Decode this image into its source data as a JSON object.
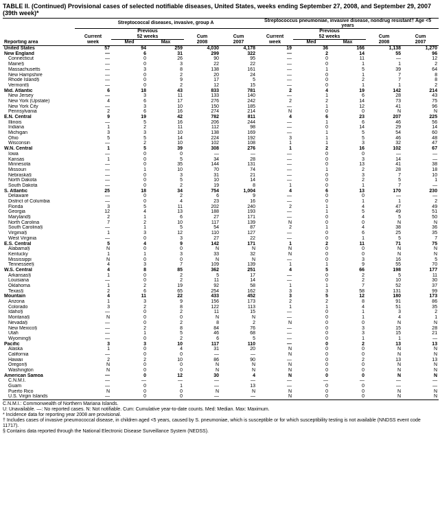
{
  "title": "TABLE II. (Continued) Provisional cases of selected notifiable diseases, United States, weeks ending September 27, 2008, and September 29, 2007 (39th week)*",
  "group1": "Streptococcal diseases, invasive, group A",
  "group2": "Streptococcus pneumoniae, invasive disease, nondrug resistant†\nAge <5 years",
  "prev": "Previous",
  "weeks52": "52 weeks",
  "cols": [
    "Reporting area",
    "Current week",
    "Med",
    "Max",
    "Cum 2008",
    "Cum 2007",
    "Current week",
    "Med",
    "Max",
    "Cum 2008",
    "Cum 2007"
  ],
  "rows": [
    {
      "b": 1,
      "c": [
        "United States",
        "57",
        "94",
        "259",
        "4,030",
        "4,178",
        "19",
        "36",
        "166",
        "1,138",
        "1,270"
      ]
    },
    {
      "b": 1,
      "c": [
        "New England",
        "—",
        "6",
        "31",
        "299",
        "322",
        "—",
        "2",
        "14",
        "55",
        "96"
      ]
    },
    {
      "i": 1,
      "c": [
        "Connecticut",
        "—",
        "0",
        "26",
        "90",
        "95",
        "—",
        "0",
        "11",
        "—",
        "12"
      ]
    },
    {
      "i": 1,
      "c": [
        "Maine§",
        "—",
        "0",
        "3",
        "22",
        "22",
        "—",
        "0",
        "1",
        "1",
        "2"
      ]
    },
    {
      "i": 1,
      "c": [
        "Massachusetts",
        "—",
        "3",
        "8",
        "138",
        "161",
        "—",
        "1",
        "5",
        "39",
        "64"
      ]
    },
    {
      "i": 1,
      "c": [
        "New Hampshire",
        "—",
        "0",
        "2",
        "20",
        "24",
        "—",
        "0",
        "1",
        "7",
        "8"
      ]
    },
    {
      "i": 1,
      "c": [
        "Rhode Island§",
        "—",
        "0",
        "9",
        "17",
        "5",
        "—",
        "0",
        "2",
        "7",
        "8"
      ]
    },
    {
      "i": 1,
      "c": [
        "Vermont§",
        "—",
        "0",
        "2",
        "12",
        "15",
        "—",
        "0",
        "1",
        "1",
        "2"
      ]
    },
    {
      "b": 1,
      "c": [
        "Mid. Atlantic",
        "6",
        "18",
        "43",
        "833",
        "781",
        "2",
        "4",
        "19",
        "142",
        "214"
      ]
    },
    {
      "i": 1,
      "c": [
        "New Jersey",
        "—",
        "3",
        "11",
        "133",
        "140",
        "—",
        "1",
        "6",
        "28",
        "43"
      ]
    },
    {
      "i": 1,
      "c": [
        "New York (Upstate)",
        "4",
        "6",
        "17",
        "276",
        "242",
        "2",
        "2",
        "14",
        "73",
        "75"
      ]
    },
    {
      "i": 1,
      "c": [
        "New York City",
        "—",
        "3",
        "10",
        "150",
        "185",
        "—",
        "1",
        "12",
        "41",
        "96"
      ]
    },
    {
      "i": 1,
      "c": [
        "Pennsylvania",
        "2",
        "6",
        "16",
        "274",
        "214",
        "N",
        "0",
        "0",
        "N",
        "N"
      ]
    },
    {
      "b": 1,
      "c": [
        "E.N. Central",
        "9",
        "19",
        "42",
        "782",
        "811",
        "4",
        "6",
        "23",
        "207",
        "225"
      ]
    },
    {
      "i": 1,
      "c": [
        "Illinois",
        "—",
        "5",
        "16",
        "206",
        "244",
        "—",
        "1",
        "6",
        "46",
        "56"
      ]
    },
    {
      "i": 1,
      "c": [
        "Indiana",
        "1",
        "2",
        "11",
        "112",
        "98",
        "—",
        "0",
        "14",
        "29",
        "14"
      ]
    },
    {
      "i": 1,
      "c": [
        "Michigan",
        "3",
        "3",
        "10",
        "138",
        "169",
        "—",
        "1",
        "5",
        "54",
        "60"
      ]
    },
    {
      "i": 1,
      "c": [
        "Ohio",
        "5",
        "5",
        "14",
        "224",
        "192",
        "3",
        "1",
        "5",
        "46",
        "48"
      ]
    },
    {
      "i": 1,
      "c": [
        "Wisconsin",
        "—",
        "2",
        "10",
        "102",
        "108",
        "1",
        "1",
        "3",
        "32",
        "47"
      ]
    },
    {
      "b": 1,
      "c": [
        "W.N. Central",
        "1",
        "5",
        "39",
        "308",
        "276",
        "1",
        "2",
        "16",
        "102",
        "67"
      ]
    },
    {
      "i": 1,
      "c": [
        "Iowa",
        "—",
        "0",
        "0",
        "—",
        "—",
        "—",
        "0",
        "0",
        "—",
        "—"
      ]
    },
    {
      "i": 1,
      "c": [
        "Kansas",
        "1",
        "0",
        "5",
        "34",
        "28",
        "—",
        "0",
        "3",
        "14",
        "—"
      ]
    },
    {
      "i": 1,
      "c": [
        "Minnesota",
        "—",
        "0",
        "35",
        "144",
        "131",
        "—",
        "0",
        "13",
        "41",
        "38"
      ]
    },
    {
      "i": 1,
      "c": [
        "Missouri",
        "—",
        "1",
        "10",
        "70",
        "74",
        "—",
        "1",
        "2",
        "28",
        "18"
      ]
    },
    {
      "i": 1,
      "c": [
        "Nebraska§",
        "—",
        "0",
        "3",
        "31",
        "21",
        "—",
        "0",
        "3",
        "7",
        "10"
      ]
    },
    {
      "i": 1,
      "c": [
        "North Dakota",
        "—",
        "0",
        "5",
        "10",
        "14",
        "—",
        "0",
        "2",
        "5",
        "1"
      ]
    },
    {
      "i": 1,
      "c": [
        "South Dakota",
        "—",
        "0",
        "2",
        "19",
        "8",
        "1",
        "0",
        "1",
        "7",
        "—"
      ]
    },
    {
      "b": 1,
      "c": [
        "S. Atlantic",
        "25",
        "18",
        "34",
        "754",
        "1,004",
        "4",
        "6",
        "13",
        "170",
        "230"
      ]
    },
    {
      "i": 1,
      "c": [
        "Delaware",
        "—",
        "0",
        "2",
        "6",
        "9",
        "—",
        "0",
        "0",
        "—",
        "—"
      ]
    },
    {
      "i": 1,
      "c": [
        "District of Columbia",
        "—",
        "0",
        "4",
        "23",
        "16",
        "—",
        "0",
        "1",
        "1",
        "2"
      ]
    },
    {
      "i": 1,
      "c": [
        "Florida",
        "3",
        "5",
        "11",
        "202",
        "240",
        "2",
        "1",
        "4",
        "47",
        "49"
      ]
    },
    {
      "i": 1,
      "c": [
        "Georgia",
        "12",
        "4",
        "13",
        "188",
        "193",
        "—",
        "1",
        "5",
        "49",
        "51"
      ]
    },
    {
      "i": 1,
      "c": [
        "Maryland§",
        "2",
        "1",
        "6",
        "27",
        "171",
        "—",
        "0",
        "4",
        "5",
        "50"
      ]
    },
    {
      "i": 1,
      "c": [
        "North Carolina",
        "7",
        "2",
        "10",
        "117",
        "139",
        "N",
        "0",
        "0",
        "N",
        "N"
      ]
    },
    {
      "i": 1,
      "c": [
        "South Carolina§",
        "—",
        "1",
        "5",
        "54",
        "87",
        "2",
        "1",
        "4",
        "38",
        "36"
      ]
    },
    {
      "i": 1,
      "c": [
        "Virginia§",
        "1",
        "3",
        "12",
        "110",
        "127",
        "—",
        "0",
        "6",
        "25",
        "35"
      ]
    },
    {
      "i": 1,
      "c": [
        "West Virginia",
        "—",
        "0",
        "3",
        "27",
        "22",
        "—",
        "0",
        "1",
        "5",
        "7"
      ]
    },
    {
      "b": 1,
      "c": [
        "E.S. Central",
        "5",
        "4",
        "9",
        "142",
        "171",
        "1",
        "2",
        "11",
        "71",
        "75"
      ]
    },
    {
      "i": 1,
      "c": [
        "Alabama§",
        "N",
        "0",
        "0",
        "N",
        "N",
        "N",
        "0",
        "0",
        "N",
        "N"
      ]
    },
    {
      "i": 1,
      "c": [
        "Kentucky",
        "1",
        "1",
        "3",
        "33",
        "32",
        "N",
        "0",
        "0",
        "N",
        "N"
      ]
    },
    {
      "i": 1,
      "c": [
        "Mississippi",
        "N",
        "0",
        "0",
        "N",
        "N",
        "—",
        "0",
        "3",
        "16",
        "5"
      ]
    },
    {
      "i": 1,
      "c": [
        "Tennessee§",
        "4",
        "3",
        "7",
        "109",
        "139",
        "1",
        "1",
        "9",
        "55",
        "70"
      ]
    },
    {
      "b": 1,
      "c": [
        "W.S. Central",
        "4",
        "8",
        "85",
        "362",
        "251",
        "4",
        "5",
        "66",
        "198",
        "177"
      ]
    },
    {
      "i": 1,
      "c": [
        "Arkansas§",
        "1",
        "0",
        "2",
        "5",
        "17",
        "—",
        "0",
        "2",
        "5",
        "11"
      ]
    },
    {
      "i": 1,
      "c": [
        "Louisiana",
        "—",
        "0",
        "2",
        "11",
        "14",
        "—",
        "0",
        "2",
        "10",
        "30"
      ]
    },
    {
      "i": 1,
      "c": [
        "Oklahoma",
        "1",
        "2",
        "19",
        "92",
        "58",
        "1",
        "1",
        "7",
        "52",
        "37"
      ]
    },
    {
      "i": 1,
      "c": [
        "Texas§",
        "2",
        "6",
        "65",
        "254",
        "162",
        "3",
        "3",
        "58",
        "131",
        "99"
      ]
    },
    {
      "b": 1,
      "c": [
        "Mountain",
        "4",
        "11",
        "22",
        "433",
        "452",
        "3",
        "5",
        "12",
        "180",
        "173"
      ]
    },
    {
      "i": 1,
      "c": [
        "Arizona",
        "1",
        "3",
        "9",
        "156",
        "173",
        "2",
        "2",
        "8",
        "91",
        "86"
      ]
    },
    {
      "i": 1,
      "c": [
        "Colorado",
        "3",
        "2",
        "8",
        "122",
        "113",
        "1",
        "1",
        "4",
        "51",
        "35"
      ]
    },
    {
      "i": 1,
      "c": [
        "Idaho§",
        "—",
        "0",
        "2",
        "11",
        "15",
        "—",
        "0",
        "1",
        "3",
        "2"
      ]
    },
    {
      "i": 1,
      "c": [
        "Montana§",
        "N",
        "0",
        "0",
        "N",
        "N",
        "—",
        "0",
        "1",
        "4",
        "1"
      ]
    },
    {
      "i": 1,
      "c": [
        "Nevada§",
        "—",
        "0",
        "2",
        "8",
        "2",
        "N",
        "0",
        "0",
        "N",
        "N"
      ]
    },
    {
      "i": 1,
      "c": [
        "New Mexico§",
        "—",
        "2",
        "8",
        "84",
        "76",
        "—",
        "0",
        "3",
        "15",
        "28"
      ]
    },
    {
      "i": 1,
      "c": [
        "Utah",
        "—",
        "1",
        "5",
        "46",
        "68",
        "—",
        "0",
        "3",
        "15",
        "21"
      ]
    },
    {
      "i": 1,
      "c": [
        "Wyoming§",
        "—",
        "0",
        "2",
        "6",
        "5",
        "—",
        "0",
        "1",
        "1",
        "—"
      ]
    },
    {
      "b": 1,
      "c": [
        "Pacific",
        "3",
        "3",
        "10",
        "117",
        "110",
        "—",
        "0",
        "2",
        "13",
        "13"
      ]
    },
    {
      "i": 1,
      "c": [
        "Alaska",
        "1",
        "0",
        "4",
        "31",
        "20",
        "N",
        "0",
        "0",
        "N",
        "N"
      ]
    },
    {
      "i": 1,
      "c": [
        "California",
        "—",
        "0",
        "0",
        "—",
        "—",
        "N",
        "0",
        "0",
        "N",
        "N"
      ]
    },
    {
      "i": 1,
      "c": [
        "Hawaii",
        "2",
        "2",
        "10",
        "86",
        "90",
        "—",
        "0",
        "2",
        "13",
        "13"
      ]
    },
    {
      "i": 1,
      "c": [
        "Oregon§",
        "N",
        "0",
        "0",
        "N",
        "N",
        "N",
        "0",
        "0",
        "N",
        "N"
      ]
    },
    {
      "i": 1,
      "c": [
        "Washington",
        "N",
        "0",
        "0",
        "N",
        "N",
        "N",
        "0",
        "0",
        "N",
        "N"
      ]
    },
    {
      "b": 1,
      "c": [
        "American Samoa",
        "—",
        "0",
        "12",
        "30",
        "4",
        "N",
        "0",
        "0",
        "N",
        "N"
      ]
    },
    {
      "i": 1,
      "c": [
        "C.N.M.I.",
        "—",
        "—",
        "—",
        "—",
        "—",
        "—",
        "—",
        "—",
        "—",
        "—"
      ]
    },
    {
      "i": 1,
      "c": [
        "Guam",
        "—",
        "0",
        "1",
        "—",
        "13",
        "—",
        "0",
        "0",
        "—",
        "—"
      ]
    },
    {
      "i": 1,
      "c": [
        "Puerto Rico",
        "N",
        "0",
        "0",
        "N",
        "N",
        "N",
        "0",
        "0",
        "N",
        "N"
      ]
    },
    {
      "i": 1,
      "c": [
        "U.S. Virgin Islands",
        "—",
        "0",
        "0",
        "—",
        "—",
        "N",
        "0",
        "0",
        "N",
        "N"
      ]
    }
  ],
  "foot1": "C.N.M.I.: Commonwealth of Northern Mariana Islands.",
  "foot2": "U: Unavailable.    —: No reported cases.    N: Not notifiable.    Cum: Cumulative year-to-date counts.    Med: Median.    Max: Maximum.",
  "foot3": "* Incidence data for reporting year 2008 are provisional.",
  "foot4": "† Includes cases of invasive pneumococcal disease, in children aged <5 years, caused by S. pneumoniae, which is susceptible or for which susceptibility testing is not available (NNDSS event code 11717).",
  "foot5": "§ Contains data reported through the National Electronic Disease Surveillance System (NEDSS)."
}
